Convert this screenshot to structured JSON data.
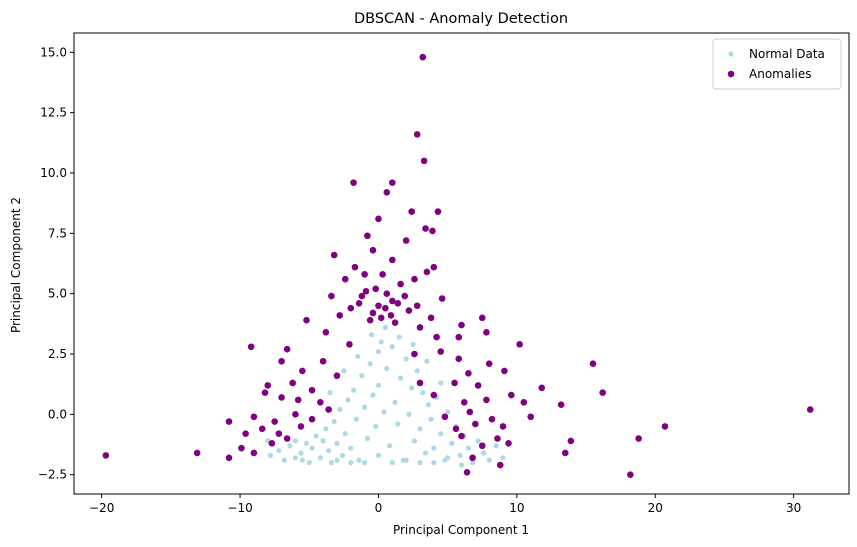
{
  "chart_data": {
    "type": "scatter",
    "title": "DBSCAN - Anomaly Detection",
    "xlabel": "Principal Component 1",
    "ylabel": "Principal Component 2",
    "xlim": [
      -22,
      34
    ],
    "ylim": [
      -3.3,
      15.8
    ],
    "xticks": [
      -20,
      -10,
      0,
      10,
      20,
      30
    ],
    "yticks": [
      -2.5,
      0.0,
      2.5,
      5.0,
      7.5,
      10.0,
      12.5,
      15.0
    ],
    "grid": false,
    "legend_position": "top-right",
    "series": [
      {
        "name": "Normal Data",
        "color": "#add8e6",
        "marker_size": "small",
        "points": [
          [
            -8.0,
            -1.1
          ],
          [
            -7.8,
            -1.7
          ],
          [
            -7.2,
            -1.5
          ],
          [
            -6.8,
            -1.9
          ],
          [
            -6.4,
            -1.3
          ],
          [
            -6.0,
            -1.8
          ],
          [
            -5.6,
            -1.6
          ],
          [
            -5.2,
            -1.2
          ],
          [
            -5.0,
            -2.0
          ],
          [
            -4.8,
            -1.4
          ],
          [
            -4.5,
            -0.9
          ],
          [
            -4.2,
            -1.8
          ],
          [
            -4.0,
            -1.1
          ],
          [
            -3.8,
            -0.6
          ],
          [
            -3.6,
            -1.5
          ],
          [
            -3.4,
            -2.0
          ],
          [
            -3.2,
            -0.3
          ],
          [
            -3.0,
            -1.2
          ],
          [
            -2.8,
            0.2
          ],
          [
            -2.6,
            -1.7
          ],
          [
            -2.4,
            -0.8
          ],
          [
            -2.2,
            0.6
          ],
          [
            -2.0,
            -1.4
          ],
          [
            -1.8,
            1.0
          ],
          [
            -1.6,
            -0.2
          ],
          [
            -1.4,
            -1.9
          ],
          [
            -1.2,
            1.6
          ],
          [
            -1.0,
            0.3
          ],
          [
            -0.8,
            -1.0
          ],
          [
            -0.6,
            2.1
          ],
          [
            -0.4,
            0.8
          ],
          [
            -0.2,
            -0.5
          ],
          [
            0.0,
            2.6
          ],
          [
            0.0,
            1.2
          ],
          [
            0.0,
            -1.7
          ],
          [
            0.2,
            3.0
          ],
          [
            0.4,
            0.1
          ],
          [
            0.6,
            1.9
          ],
          [
            0.8,
            -1.3
          ],
          [
            1.0,
            2.8
          ],
          [
            1.2,
            0.5
          ],
          [
            1.4,
            -0.4
          ],
          [
            1.6,
            1.5
          ],
          [
            1.8,
            -1.9
          ],
          [
            2.0,
            2.3
          ],
          [
            2.2,
            0.0
          ],
          [
            2.4,
            1.1
          ],
          [
            2.6,
            -1.1
          ],
          [
            2.8,
            1.8
          ],
          [
            3.0,
            -0.6
          ],
          [
            3.2,
            0.9
          ],
          [
            3.4,
            -1.6
          ],
          [
            3.6,
            0.4
          ],
          [
            3.8,
            -0.2
          ],
          [
            4.0,
            -1.4
          ],
          [
            4.2,
            0.7
          ],
          [
            4.5,
            -0.8
          ],
          [
            4.8,
            -1.9
          ],
          [
            5.0,
            0.1
          ],
          [
            5.3,
            -1.2
          ],
          [
            5.6,
            -0.5
          ],
          [
            5.9,
            -1.7
          ],
          [
            6.2,
            -0.9
          ],
          [
            6.5,
            -1.4
          ],
          [
            6.8,
            -2.0
          ],
          [
            7.2,
            -1.1
          ],
          [
            7.6,
            -1.6
          ],
          [
            8.0,
            -1.9
          ],
          [
            8.5,
            -1.3
          ],
          [
            9.0,
            -1.8
          ],
          [
            -6.0,
            -1.1
          ],
          [
            -5.5,
            -1.9
          ],
          [
            -3.0,
            -1.9
          ],
          [
            -2.0,
            -2.0
          ],
          [
            -1.0,
            -2.0
          ],
          [
            1.0,
            -2.0
          ],
          [
            2.0,
            -1.9
          ],
          [
            3.0,
            -2.0
          ],
          [
            4.0,
            -2.0
          ],
          [
            5.0,
            -1.8
          ],
          [
            6.0,
            -2.1
          ],
          [
            -1.5,
            2.4
          ],
          [
            1.5,
            3.2
          ],
          [
            0.5,
            3.6
          ],
          [
            -0.5,
            3.3
          ],
          [
            2.5,
            2.9
          ],
          [
            -2.5,
            1.8
          ],
          [
            3.5,
            2.2
          ],
          [
            -3.5,
            0.9
          ],
          [
            4.5,
            1.3
          ]
        ]
      },
      {
        "name": "Anomalies",
        "color": "#800080",
        "marker_size": "large",
        "points": [
          [
            3.2,
            14.8
          ],
          [
            2.8,
            11.6
          ],
          [
            3.3,
            10.5
          ],
          [
            -1.8,
            9.6
          ],
          [
            1.0,
            9.6
          ],
          [
            0.6,
            9.2
          ],
          [
            4.3,
            8.4
          ],
          [
            2.4,
            8.4
          ],
          [
            0.0,
            8.1
          ],
          [
            3.9,
            7.6
          ],
          [
            -0.8,
            7.4
          ],
          [
            3.4,
            7.7
          ],
          [
            -3.2,
            6.6
          ],
          [
            -0.4,
            6.8
          ],
          [
            2.0,
            7.2
          ],
          [
            4.0,
            6.1
          ],
          [
            -1.7,
            6.1
          ],
          [
            1.0,
            6.4
          ],
          [
            -2.4,
            5.6
          ],
          [
            -1.0,
            5.8
          ],
          [
            2.6,
            5.6
          ],
          [
            3.5,
            5.9
          ],
          [
            -0.2,
            5.2
          ],
          [
            0.6,
            5.0
          ],
          [
            1.6,
            5.4
          ],
          [
            -3.4,
            4.9
          ],
          [
            4.6,
            4.8
          ],
          [
            -1.4,
            4.6
          ],
          [
            0.0,
            4.5
          ],
          [
            0.5,
            4.4
          ],
          [
            1.0,
            4.7
          ],
          [
            -0.4,
            4.2
          ],
          [
            0.2,
            4.0
          ],
          [
            0.9,
            4.1
          ],
          [
            2.2,
            4.3
          ],
          [
            -2.8,
            4.1
          ],
          [
            3.8,
            4.0
          ],
          [
            -5.2,
            3.9
          ],
          [
            6.0,
            3.7
          ],
          [
            -3.8,
            3.4
          ],
          [
            4.2,
            3.2
          ],
          [
            5.8,
            3.2
          ],
          [
            7.5,
            4.0
          ],
          [
            7.8,
            3.4
          ],
          [
            -9.2,
            2.8
          ],
          [
            -6.6,
            2.7
          ],
          [
            -4.0,
            2.2
          ],
          [
            -2.1,
            2.9
          ],
          [
            2.6,
            2.5
          ],
          [
            4.5,
            2.6
          ],
          [
            5.8,
            2.3
          ],
          [
            10.2,
            2.9
          ],
          [
            8.0,
            2.1
          ],
          [
            -7.0,
            2.2
          ],
          [
            -5.5,
            1.8
          ],
          [
            -3.0,
            1.6
          ],
          [
            6.5,
            1.7
          ],
          [
            9.1,
            1.8
          ],
          [
            15.5,
            2.1
          ],
          [
            -8.0,
            1.2
          ],
          [
            -6.2,
            1.3
          ],
          [
            -4.8,
            1.0
          ],
          [
            3.0,
            1.3
          ],
          [
            5.5,
            1.3
          ],
          [
            7.2,
            1.2
          ],
          [
            11.8,
            1.1
          ],
          [
            -8.2,
            0.9
          ],
          [
            -7.0,
            0.7
          ],
          [
            -5.8,
            0.6
          ],
          [
            -4.2,
            0.5
          ],
          [
            -3.6,
            0.2
          ],
          [
            4.0,
            0.8
          ],
          [
            6.2,
            0.5
          ],
          [
            7.8,
            0.6
          ],
          [
            9.6,
            0.8
          ],
          [
            10.5,
            0.5
          ],
          [
            16.2,
            0.9
          ],
          [
            13.2,
            0.4
          ],
          [
            -9.0,
            -0.1
          ],
          [
            -7.5,
            -0.3
          ],
          [
            -6.0,
            0.0
          ],
          [
            -4.8,
            -0.2
          ],
          [
            4.8,
            -0.1
          ],
          [
            6.6,
            0.1
          ],
          [
            8.2,
            -0.2
          ],
          [
            11.0,
            -0.1
          ],
          [
            31.2,
            0.2
          ],
          [
            -10.8,
            -0.3
          ],
          [
            -8.4,
            -0.6
          ],
          [
            -7.2,
            -0.8
          ],
          [
            -5.6,
            -0.5
          ],
          [
            5.6,
            -0.6
          ],
          [
            7.0,
            -0.4
          ],
          [
            9.0,
            -0.5
          ],
          [
            20.7,
            -0.5
          ],
          [
            -9.6,
            -0.8
          ],
          [
            -6.6,
            -1.0
          ],
          [
            6.0,
            -0.9
          ],
          [
            8.6,
            -1.0
          ],
          [
            13.9,
            -1.1
          ],
          [
            18.8,
            -1.0
          ],
          [
            -9.9,
            -1.4
          ],
          [
            -7.7,
            -1.2
          ],
          [
            7.5,
            -1.3
          ],
          [
            9.4,
            -1.2
          ],
          [
            13.5,
            -1.6
          ],
          [
            -19.7,
            -1.7
          ],
          [
            -13.1,
            -1.6
          ],
          [
            -10.8,
            -1.8
          ],
          [
            -9.0,
            -1.6
          ],
          [
            6.8,
            -1.8
          ],
          [
            8.8,
            -2.1
          ],
          [
            18.2,
            -2.5
          ],
          [
            6.4,
            -2.4
          ],
          [
            -1.2,
            4.9
          ],
          [
            1.4,
            4.6
          ],
          [
            0.3,
            5.8
          ],
          [
            -0.9,
            5.1
          ],
          [
            1.9,
            4.9
          ],
          [
            -2.0,
            4.4
          ],
          [
            2.8,
            4.5
          ],
          [
            -0.6,
            3.9
          ],
          [
            1.2,
            3.8
          ],
          [
            3.0,
            3.6
          ]
        ]
      }
    ]
  }
}
